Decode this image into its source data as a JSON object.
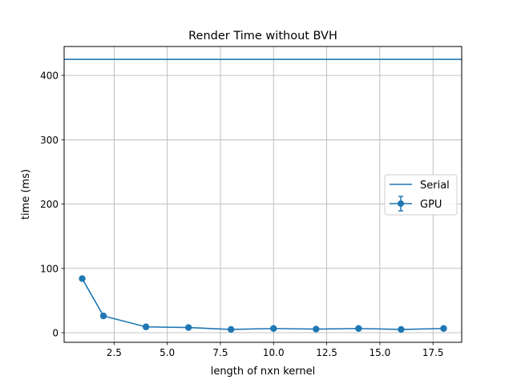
{
  "chart_data": {
    "type": "line",
    "title": "Render Time without BVH",
    "xlabel": "length of nxn kernel",
    "ylabel": "time (ms)",
    "xlim": [
      0.15,
      18.85
    ],
    "ylim": [
      -15,
      445
    ],
    "xticks": [
      2.5,
      5.0,
      7.5,
      10.0,
      12.5,
      15.0,
      17.5
    ],
    "xtick_labels": [
      "2.5",
      "5.0",
      "7.5",
      "10.0",
      "12.5",
      "15.0",
      "17.5"
    ],
    "yticks": [
      0,
      100,
      200,
      300,
      400
    ],
    "ytick_labels": [
      "0",
      "100",
      "200",
      "300",
      "400"
    ],
    "grid": true,
    "legend_position": "center-right",
    "color": "#1f77b4",
    "series": [
      {
        "name": "Serial",
        "kind": "horizontal-line",
        "value": 425
      },
      {
        "name": "GPU",
        "kind": "line-with-markers-and-errorbars",
        "x": [
          1,
          2,
          4,
          6,
          8,
          10,
          12,
          14,
          16,
          18
        ],
        "values": [
          84,
          26,
          9,
          8,
          5,
          6.5,
          5.5,
          6.5,
          5,
          6.5
        ]
      }
    ]
  }
}
